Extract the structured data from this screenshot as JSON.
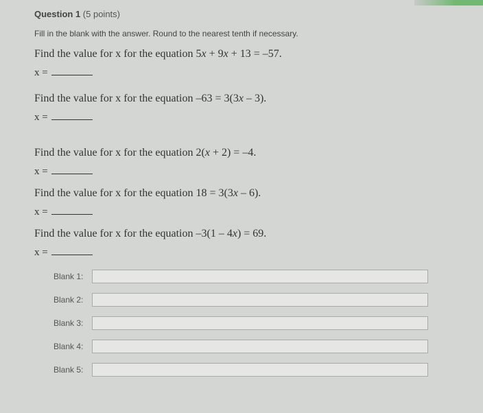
{
  "header": {
    "title": "Question 1",
    "points": " (5 points)"
  },
  "instruction": "Fill in the blank with the answer. Round to the nearest tenth if necessary.",
  "problems": [
    {
      "text": "Find the value for x for the equation 5x + 9x + 13 = –57.",
      "answer_prefix": "x ="
    },
    {
      "text": "Find the value for x for the equation –63 = 3(3x – 3).",
      "answer_prefix": "x ="
    },
    {
      "text": "Find the value for x for the equation 2(x + 2) = –4.",
      "answer_prefix": "x ="
    },
    {
      "text": "Find the value for x for the equation 18 = 3(3x – 6).",
      "answer_prefix": "x ="
    },
    {
      "text": "Find the value for x for the equation –3(1 – 4x) = 69.",
      "answer_prefix": "x ="
    }
  ],
  "blanks": [
    {
      "label": "Blank 1:",
      "value": ""
    },
    {
      "label": "Blank 2:",
      "value": ""
    },
    {
      "label": "Blank 3:",
      "value": ""
    },
    {
      "label": "Blank 4:",
      "value": ""
    },
    {
      "label": "Blank 5:",
      "value": ""
    }
  ]
}
